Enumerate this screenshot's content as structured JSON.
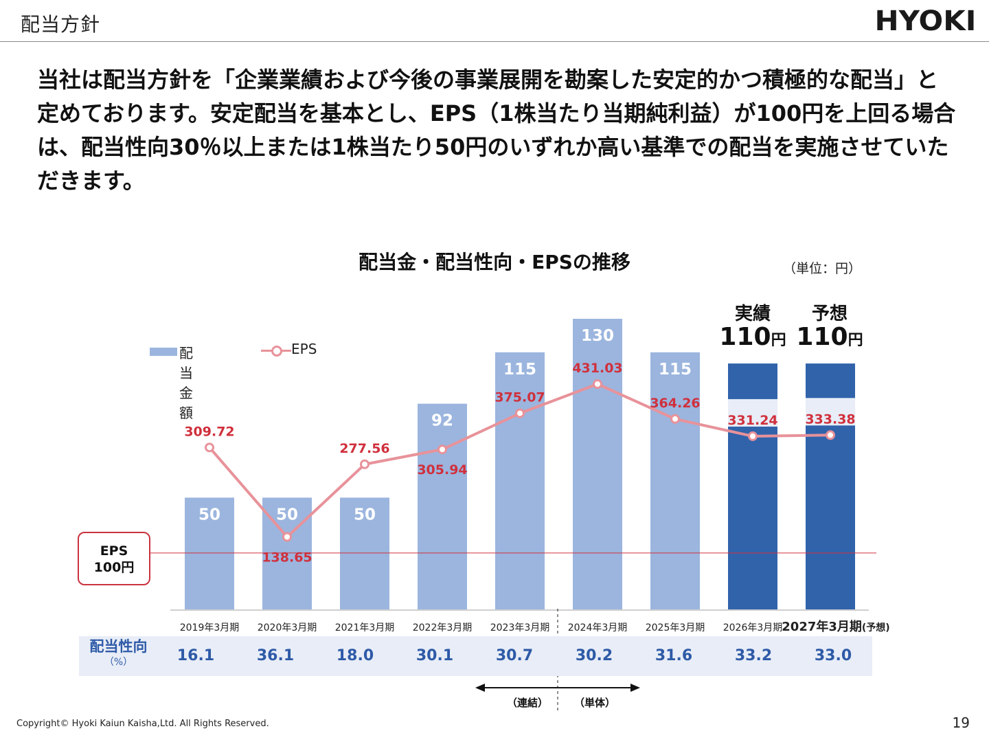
{
  "header": {
    "title": "配当方針",
    "logo_text": "HYOKI"
  },
  "policy_text": "当社は配当方針を「企業業績および今後の事業展開を勘案した安定的かつ積極的な配当」と定めております。安定配当を基本とし、EPS（1株当たり当期純利益）が100円を上回る場合は、配当性向30％以上または1株当たり50円のいずれか高い基準での配当を実施させていただきます。",
  "chart_title": "配当金・配当性向・EPSの推移",
  "unit_note": "（単位：円）",
  "callouts": {
    "actual_label": "実績",
    "actual_value": "110",
    "forecast_label": "予想",
    "forecast_value": "110",
    "yen": "円"
  },
  "legend": {
    "dividend": "配当金額",
    "eps": "EPS"
  },
  "eps_threshold_box": {
    "line1": "EPS",
    "line2": "100円"
  },
  "payout": {
    "label": "配当性向",
    "unit": "（%）"
  },
  "brackets": {
    "consolidated": "（連結）",
    "standalone": "（単体）"
  },
  "footer": {
    "copyright": "Copyright© Hyoki Kaiun Kaisha,Ltd. All Rights Reserved.",
    "page_number": "19"
  },
  "chart_data": {
    "type": "bar",
    "categories": [
      "2019年3月期",
      "2020年3月期",
      "2021年3月期",
      "2022年3月期",
      "2023年3月期",
      "2024年3月期",
      "2025年3月期",
      "2026年3月期",
      "2027年3月期"
    ],
    "last_category_suffix": "(予想)",
    "series": [
      {
        "name": "配当金額",
        "type": "bar",
        "values": [
          50,
          50,
          50,
          92,
          115,
          130,
          115,
          110,
          110
        ],
        "value_labels": [
          "50",
          "50",
          "50",
          "92",
          "115",
          "130",
          "115",
          "",
          ""
        ],
        "colors": [
          "#9bb5de",
          "#9bb5de",
          "#9bb5de",
          "#9bb5de",
          "#9bb5de",
          "#9bb5de",
          "#9bb5de",
          "#3163ab",
          "#3163ab"
        ]
      },
      {
        "name": "EPS",
        "type": "line",
        "values": [
          309.72,
          138.65,
          277.56,
          305.94,
          375.07,
          431.03,
          364.26,
          331.24,
          333.38
        ],
        "value_labels": [
          "309.72",
          "138.65",
          "277.56",
          "305.94",
          "375.07",
          "431.03",
          "364.26",
          "331.24",
          "333.38"
        ],
        "label_position": [
          "above",
          "below",
          "above",
          "below",
          "above",
          "above",
          "above",
          "above",
          "above"
        ],
        "color": "#e8929a",
        "label_color": "#d0303c"
      }
    ],
    "payout_ratio": [
      "16.1",
      "36.1",
      "18.0",
      "30.1",
      "30.7",
      "30.2",
      "31.6",
      "33.2",
      "33.0"
    ],
    "reference_line": {
      "value": 100,
      "color": "#d0303c"
    },
    "ylim": [
      0,
      450
    ],
    "legend_position": "top-left"
  }
}
